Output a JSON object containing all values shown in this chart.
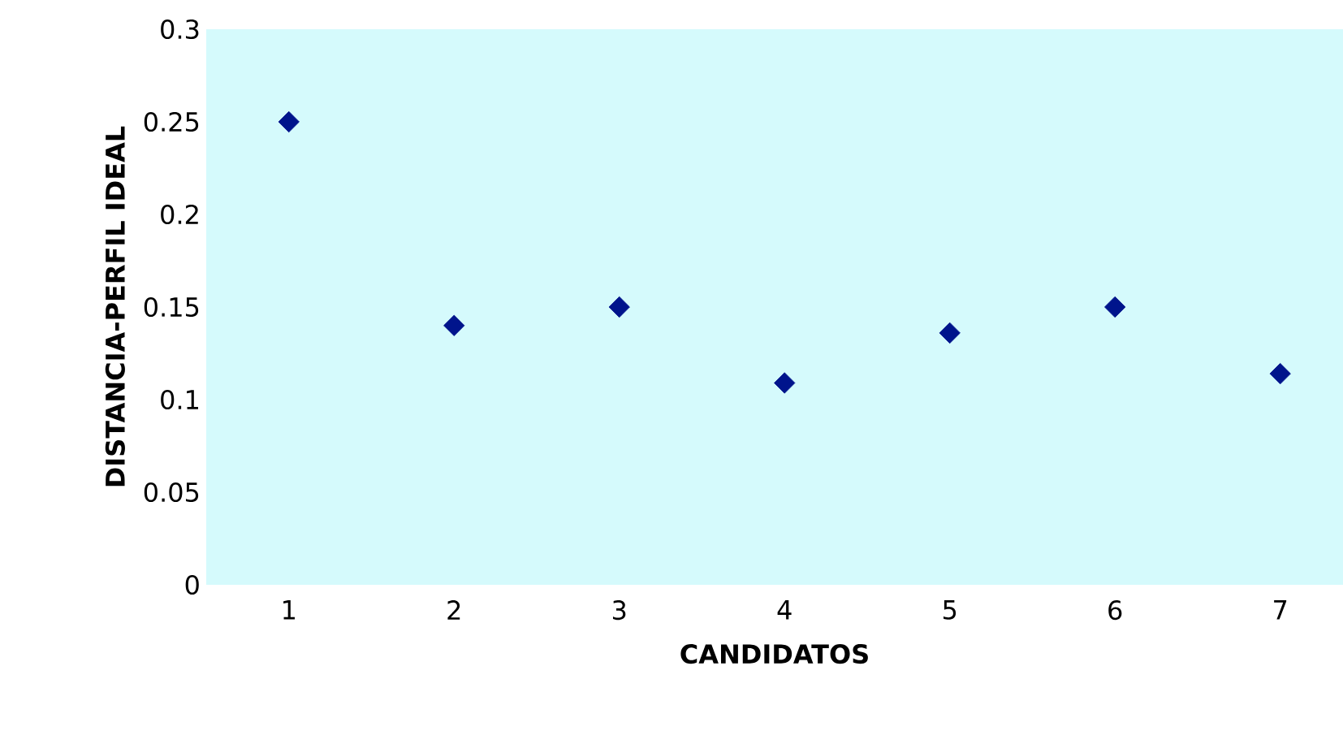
{
  "chart_data": {
    "type": "scatter",
    "xlabel": "CANDIDATOS",
    "ylabel": "DISTANCIA-PERFIL IDEAL",
    "x": [
      1,
      2,
      3,
      4,
      5,
      6,
      7
    ],
    "values": [
      0.25,
      0.14,
      0.15,
      0.109,
      0.136,
      0.15,
      0.114
    ],
    "color": "#00148c",
    "marker": "diamond",
    "xlim": [
      0.5,
      7.38
    ],
    "ylim": [
      0,
      0.3
    ],
    "xticks": [
      1,
      2,
      3,
      4,
      5,
      6,
      7
    ],
    "yticks": [
      0,
      0.05,
      0.1,
      0.15,
      0.2,
      0.25,
      0.3
    ],
    "grid": false
  }
}
